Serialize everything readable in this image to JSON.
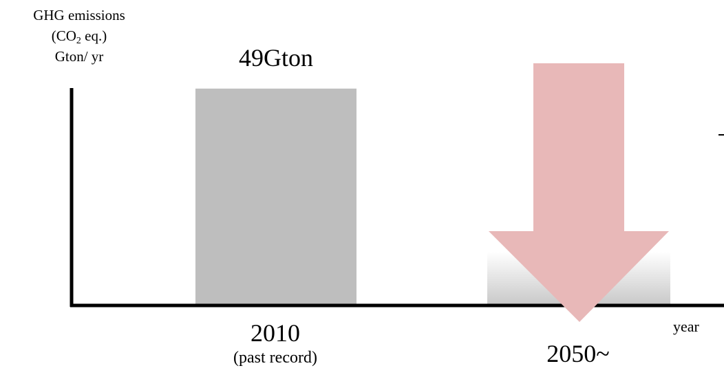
{
  "chart_data": {
    "type": "bar",
    "ylabel": [
      "GHG emissions",
      "(CO",
      "2",
      " eq.)",
      "Gton/ yr"
    ],
    "xlabel": "year",
    "categories": [
      {
        "label": "2010",
        "note": "(past record)",
        "value": 49,
        "value_label": "49Gton",
        "color": "#bebebe"
      },
      {
        "label": "2050~",
        "note": "",
        "value": null,
        "value_label": "",
        "color": "#e8b8b8"
      }
    ],
    "annotations": [
      "decreasing arrow toward 2050~"
    ],
    "ylim": [
      0,
      60
    ],
    "grid": false,
    "legend": "none"
  },
  "colors": {
    "axis": "#000000",
    "bar_past": "#bebebe",
    "arrow": "#e8b8b8"
  }
}
